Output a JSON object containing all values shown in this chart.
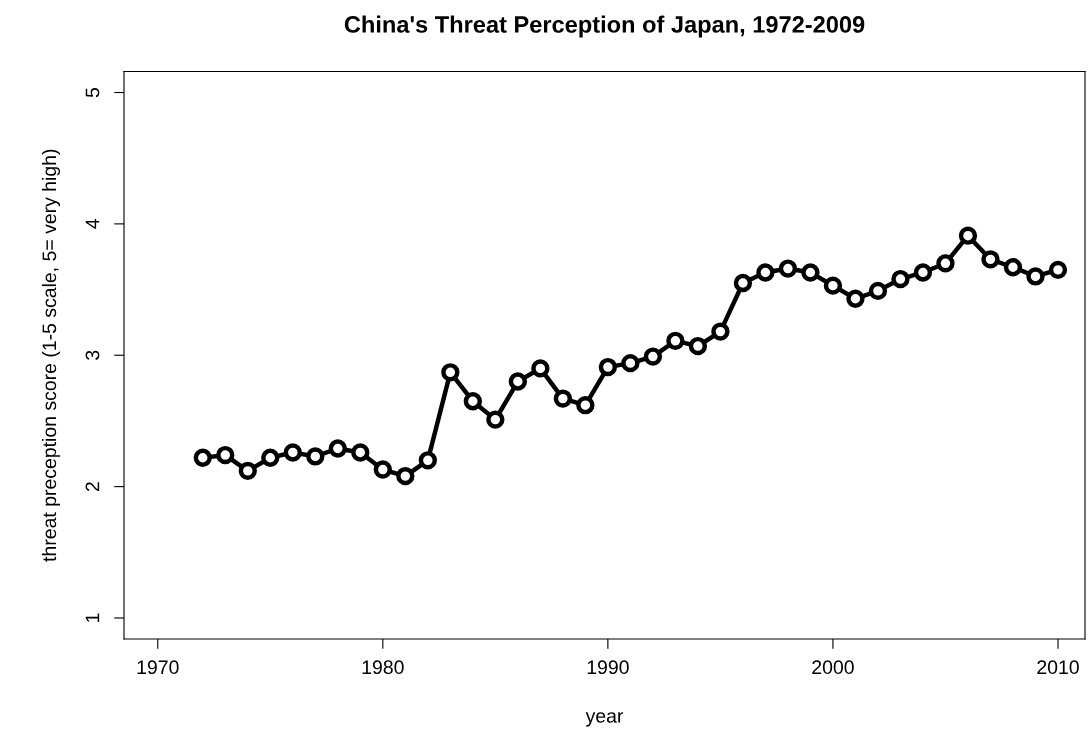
{
  "chart_data": {
    "type": "line",
    "title": "China's Threat Perception of Japan, 1972-2009",
    "xlabel": "year",
    "ylabel": "threat preception score (1-5 scale, 5= very high)",
    "x": [
      1972,
      1973,
      1974,
      1975,
      1976,
      1977,
      1978,
      1979,
      1980,
      1981,
      1982,
      1983,
      1984,
      1985,
      1986,
      1987,
      1988,
      1989,
      1990,
      1991,
      1992,
      1993,
      1994,
      1995,
      1996,
      1997,
      1998,
      1999,
      2000,
      2001,
      2002,
      2003,
      2004,
      2005,
      2006,
      2007,
      2008,
      2009,
      2010
    ],
    "series": [
      {
        "color": "#000000",
        "values": [
          2.22,
          2.24,
          2.12,
          2.22,
          2.26,
          2.23,
          2.29,
          2.26,
          2.13,
          2.08,
          2.2,
          2.87,
          2.65,
          2.51,
          2.8,
          2.9,
          2.67,
          2.62,
          2.91,
          2.94,
          2.99,
          3.11,
          3.07,
          3.18,
          3.55,
          3.63,
          3.66,
          3.63,
          3.53,
          3.43,
          3.49,
          3.58,
          3.63,
          3.7,
          3.91,
          3.73,
          3.67,
          3.6,
          3.65
        ]
      }
    ],
    "xlim": [
      1968.5,
      2011.2
    ],
    "xticks": [
      1970,
      1980,
      1990,
      2000,
      2010
    ],
    "ylim": [
      0.84,
      5.16
    ],
    "yticks": [
      1,
      2,
      3,
      4,
      5
    ],
    "grid": false,
    "legend": false,
    "marker": "circle",
    "line_style": "solid"
  }
}
